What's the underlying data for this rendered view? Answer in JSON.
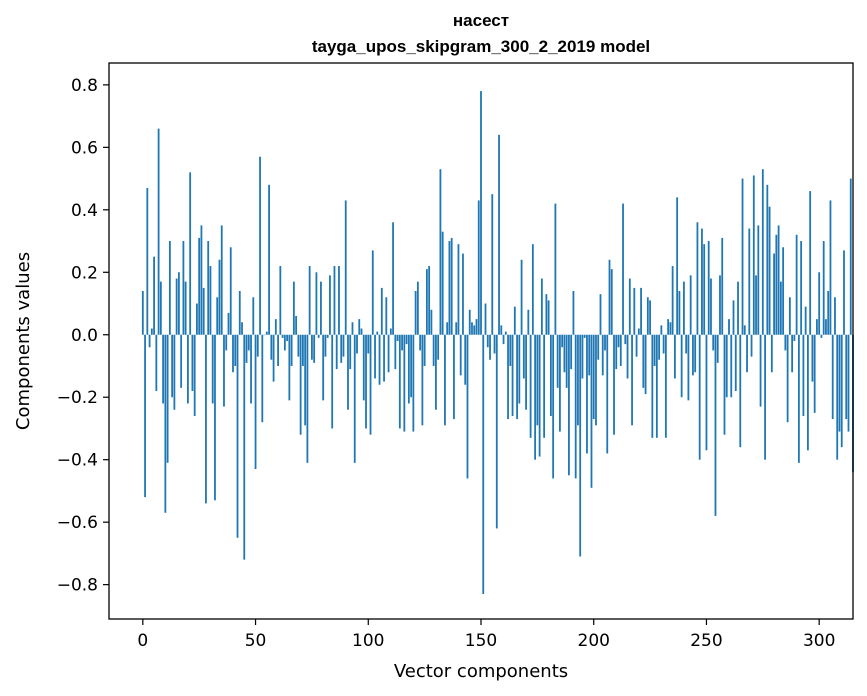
{
  "chart_data": {
    "type": "bar",
    "title": "насест",
    "subtitle": "tayga_upos_skipgram_300_2_2019 model",
    "xlabel": "Vector components",
    "ylabel": "Components values",
    "xlim": [
      -15,
      315
    ],
    "ylim": [
      -0.91,
      0.87
    ],
    "xticks": [
      0,
      50,
      100,
      150,
      200,
      250,
      300
    ],
    "yticks": [
      0.8,
      0.6,
      0.4,
      0.2,
      0.0,
      -0.2,
      -0.4,
      -0.6,
      -0.8
    ],
    "ytick_labels": [
      "0.8",
      "0.6",
      "0.4",
      "0.2",
      "0.0",
      "−0.2",
      "−0.4",
      "−0.6",
      "−0.8"
    ],
    "xtick_labels": [
      "0",
      "50",
      "100",
      "150",
      "200",
      "250",
      "300"
    ],
    "bar_color": "#1f77b4",
    "values": [
      0.14,
      -0.52,
      0.47,
      -0.04,
      0.02,
      0.25,
      -0.18,
      0.66,
      0.17,
      -0.22,
      -0.57,
      -0.41,
      0.3,
      -0.2,
      -0.24,
      0.18,
      0.2,
      -0.17,
      0.3,
      0.17,
      -0.22,
      0.52,
      -0.18,
      -0.26,
      0.1,
      0.31,
      0.35,
      0.15,
      -0.54,
      0.3,
      0.22,
      -0.22,
      -0.53,
      0.12,
      0.24,
      0.35,
      -0.23,
      -0.05,
      0.07,
      0.28,
      -0.12,
      -0.1,
      -0.65,
      0.14,
      0.04,
      -0.72,
      -0.09,
      -0.05,
      -0.22,
      0.12,
      -0.43,
      -0.07,
      0.57,
      -0.28,
      0.0,
      0.01,
      0.48,
      -0.08,
      -0.15,
      0.05,
      -0.1,
      0.22,
      -0.01,
      -0.05,
      -0.02,
      -0.21,
      -0.1,
      0.17,
      0.06,
      -0.07,
      -0.32,
      -0.1,
      -0.29,
      -0.41,
      0.22,
      -0.08,
      -0.09,
      0.2,
      -0.01,
      0.17,
      -0.21,
      -0.07,
      -0.01,
      0.19,
      -0.3,
      0.22,
      -0.11,
      0.22,
      -0.09,
      -0.07,
      0.43,
      -0.24,
      -0.11,
      0.04,
      -0.41,
      -0.06,
      0.05,
      0.02,
      -0.21,
      -0.3,
      -0.06,
      -0.32,
      0.27,
      -0.14,
      0.01,
      -0.16,
      0.15,
      -0.15,
      0.12,
      -0.12,
      0.02,
      0.36,
      -0.11,
      -0.02,
      -0.3,
      -0.05,
      -0.31,
      -0.03,
      -0.22,
      -0.2,
      -0.31,
      0.14,
      0.17,
      -0.05,
      -0.29,
      -0.1,
      0.21,
      0.22,
      0.08,
      -0.1,
      -0.24,
      -0.08,
      0.53,
      0.33,
      -0.29,
      0.04,
      0.3,
      0.31,
      -0.27,
      0.04,
      0.29,
      -0.13,
      0.26,
      -0.16,
      -0.46,
      0.08,
      0.04,
      0.03,
      0.05,
      0.43,
      0.78,
      -0.83,
      0.1,
      -0.04,
      -0.08,
      0.45,
      -0.06,
      -0.62,
      0.64,
      0.03,
      -0.03,
      0.01,
      -0.27,
      -0.1,
      -0.26,
      0.09,
      -0.27,
      -0.22,
      0.24,
      -0.14,
      -0.24,
      0.08,
      -0.33,
      0.29,
      -0.4,
      -0.29,
      -0.39,
      0.18,
      -0.33,
      0.13,
      0.11,
      -0.26,
      -0.46,
      0.42,
      -0.17,
      -0.31,
      -0.04,
      -0.12,
      -0.17,
      -0.45,
      -0.11,
      0.14,
      -0.46,
      -0.29,
      -0.71,
      -0.14,
      -0.01,
      -0.38,
      -0.13,
      -0.49,
      -0.27,
      -0.29,
      -0.08,
      0.13,
      -0.13,
      -0.05,
      -0.38,
      0.24,
      0.21,
      -0.32,
      -0.11,
      -0.04,
      -0.1,
      0.42,
      -0.03,
      -0.14,
      0.18,
      -0.29,
      0.15,
      -0.07,
      0.02,
      0.15,
      -0.17,
      -0.19,
      0.12,
      0.11,
      -0.33,
      -0.1,
      -0.33,
      -0.08,
      0.03,
      -0.06,
      -0.33,
      0.05,
      0.04,
      0.22,
      -0.14,
      0.44,
      0.14,
      -0.2,
      0.17,
      -0.06,
      -0.21,
      0.19,
      -0.13,
      -0.12,
      0.36,
      -0.4,
      0.34,
      0.29,
      -0.37,
      0.3,
      0.18,
      -0.05,
      -0.58,
      -0.09,
      0.19,
      0.31,
      -0.32,
      -0.2,
      0.05,
      -0.2,
      0.11,
      -0.18,
      0.17,
      -0.36,
      0.5,
      0.03,
      -0.12,
      0.34,
      -0.07,
      0.51,
      0.19,
      0.35,
      -0.23,
      0.53,
      -0.4,
      0.48,
      0.41,
      -0.12,
      0.26,
      0.32,
      0.35,
      0.17,
      0.28,
      -0.05,
      -0.28,
      0.12,
      -0.12,
      -0.02,
      0.32,
      -0.41,
      0.3,
      -0.26,
      0.09,
      -0.37,
      0.46,
      -0.15,
      -0.25,
      0.05,
      0.2,
      -0.01,
      0.3,
      0.05,
      0.14,
      0.43,
      -0.27,
      0.12,
      -0.4,
      -0.31,
      -0.36,
      0.27,
      -0.27,
      -0.31,
      0.5,
      -0.44
    ]
  }
}
